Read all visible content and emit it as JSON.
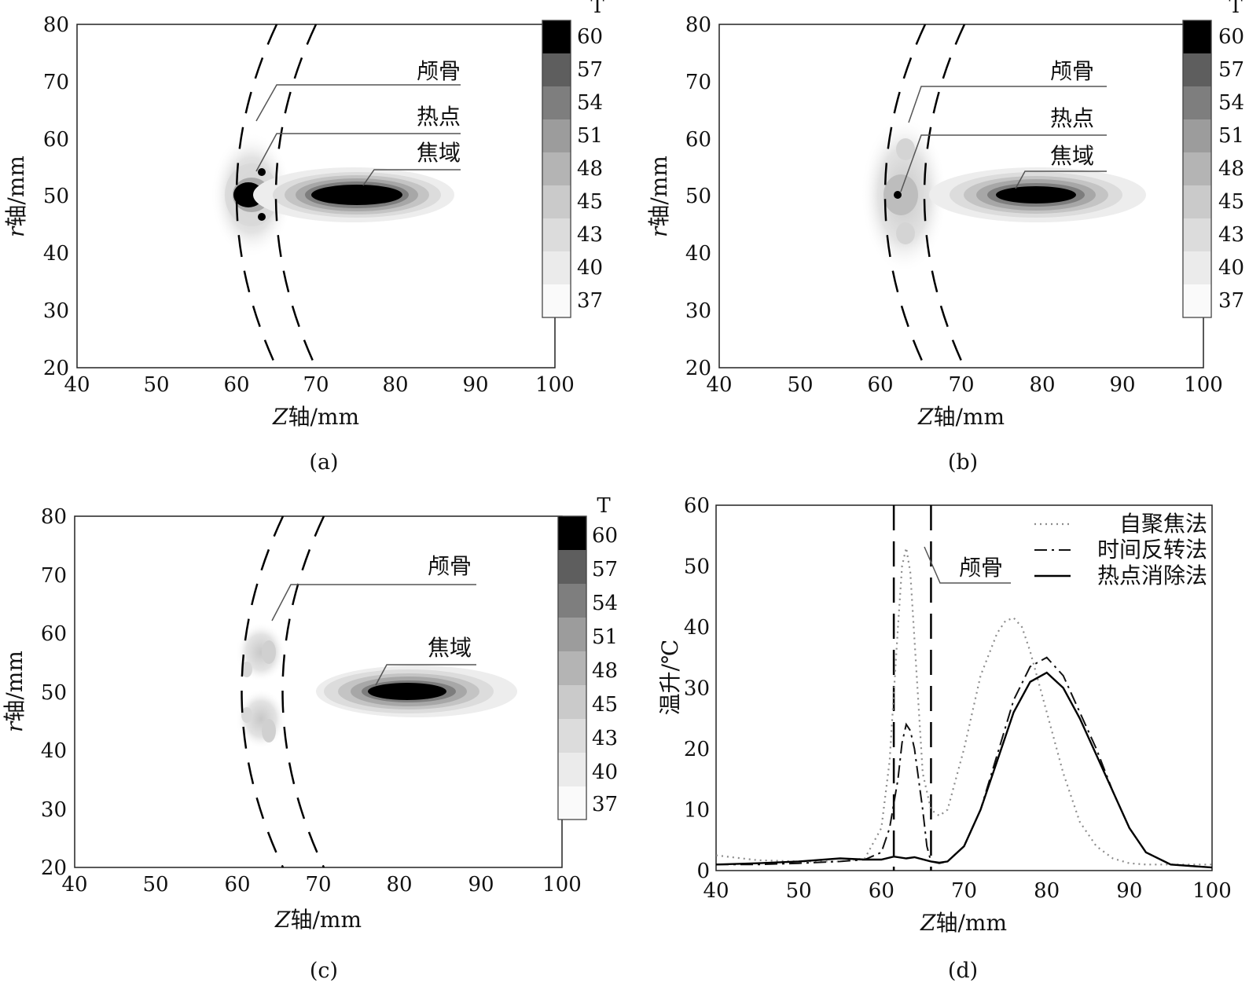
{
  "figure": {
    "panels": [
      {
        "caption": "(a)",
        "xlabel_var": "Z",
        "xlabel_rest": "轴/mm",
        "ylabel_var": "r",
        "ylabel_rest": "轴/mm",
        "colorbar_title": "T",
        "annotations": [
          "颅骨",
          "热点",
          "焦域"
        ]
      },
      {
        "caption": "(b)",
        "xlabel_var": "Z",
        "xlabel_rest": "轴/mm",
        "ylabel_var": "r",
        "ylabel_rest": "轴/mm",
        "colorbar_title": "T",
        "annotations": [
          "颅骨",
          "热点",
          "焦域"
        ]
      },
      {
        "caption": "(c)",
        "xlabel_var": "Z",
        "xlabel_rest": "轴/mm",
        "ylabel_var": "r",
        "ylabel_rest": "轴/mm",
        "colorbar_title": "T",
        "annotations": [
          "颅骨",
          "焦域"
        ]
      },
      {
        "caption": "(d)",
        "xlabel_var": "Z",
        "xlabel_rest": "轴/mm",
        "ylabel": "温升/℃",
        "annotations": [
          "颅骨"
        ]
      }
    ]
  },
  "chart_data": [
    {
      "type": "heatmap",
      "panel": "(a)",
      "x_ticks": [
        40,
        50,
        60,
        70,
        80,
        90,
        100
      ],
      "y_ticks": [
        20,
        30,
        40,
        50,
        60,
        70,
        80
      ],
      "xlim": [
        40,
        100
      ],
      "ylim": [
        20,
        80
      ],
      "colorbar_ticks": [
        60,
        57,
        54,
        51,
        48,
        45,
        43,
        40,
        37
      ],
      "colorscale": "white-to-black (37 → 60)",
      "skull_boundaries": "two dashed arcs, inner near Z≈60, outer near Z≈65 at r=50",
      "hotspots": [
        {
          "z": 61.5,
          "r": 50,
          "level": 60
        },
        {
          "z": 63,
          "r": 54,
          "level": 60
        },
        {
          "z": 63,
          "r": 46.5,
          "level": 60
        }
      ],
      "focal_region": {
        "z": 75,
        "r": 50,
        "level": 60
      },
      "grid": false
    },
    {
      "type": "heatmap",
      "panel": "(b)",
      "x_ticks": [
        40,
        50,
        60,
        70,
        80,
        90,
        100
      ],
      "y_ticks": [
        20,
        30,
        40,
        50,
        60,
        70,
        80
      ],
      "xlim": [
        40,
        100
      ],
      "ylim": [
        20,
        80
      ],
      "colorbar_ticks": [
        60,
        57,
        54,
        51,
        48,
        45,
        43,
        40,
        37
      ],
      "colorscale": "white-to-black (37 → 60)",
      "skull_boundaries": "two dashed arcs, inner near Z≈60, outer near Z≈65 at r=50",
      "hotspots": [
        {
          "z": 62.5,
          "r": 50,
          "level": 60
        }
      ],
      "focal_region": {
        "z": 79,
        "r": 50,
        "level": 60
      },
      "grid": false
    },
    {
      "type": "heatmap",
      "panel": "(c)",
      "x_ticks": [
        40,
        50,
        60,
        70,
        80,
        90,
        100
      ],
      "y_ticks": [
        20,
        30,
        40,
        50,
        60,
        70,
        80
      ],
      "xlim": [
        40,
        100
      ],
      "ylim": [
        20,
        80
      ],
      "colorbar_ticks": [
        60,
        57,
        54,
        51,
        48,
        45,
        43,
        40,
        37
      ],
      "colorscale": "white-to-black (37 → 60)",
      "skull_boundaries": "two dashed arcs, inner near Z≈60, outer near Z≈65 at r=50",
      "hotspots": [],
      "focal_region": {
        "z": 80,
        "r": 50,
        "level": 60
      },
      "grid": false
    },
    {
      "type": "line",
      "panel": "(d)",
      "xlim": [
        40,
        100
      ],
      "ylim": [
        0,
        60
      ],
      "x_ticks": [
        40,
        50,
        60,
        70,
        80,
        90,
        100
      ],
      "y_ticks": [
        0,
        10,
        20,
        30,
        40,
        50,
        60
      ],
      "skull_lines_x": [
        61.5,
        66
      ],
      "legend_position": "top-right",
      "grid": false,
      "series": [
        {
          "name": "自聚焦法",
          "style": "dotted",
          "color": "#8c8c8c",
          "x": [
            40,
            45,
            50,
            55,
            58,
            60,
            61,
            62,
            62.5,
            63,
            63.5,
            64,
            65,
            66,
            67,
            68,
            70,
            72,
            74,
            75,
            76,
            77,
            78,
            80,
            82,
            84,
            86,
            88,
            90,
            92,
            95,
            100
          ],
          "y": [
            2.5,
            1.7,
            1.5,
            1.5,
            2,
            7,
            18,
            40,
            50,
            53,
            49,
            38,
            16,
            10,
            9,
            10,
            20,
            32,
            39,
            41,
            41.5,
            40,
            36,
            26,
            16,
            8,
            4,
            2,
            1.2,
            1,
            1,
            1
          ]
        },
        {
          "name": "时间反转法",
          "style": "dashdot",
          "color": "#111111",
          "x": [
            40,
            45,
            50,
            55,
            58,
            60,
            61,
            62,
            62.5,
            63,
            63.5,
            64,
            65,
            65.5,
            66,
            67,
            68,
            70,
            72,
            74,
            76,
            78,
            80,
            82,
            84,
            86,
            88,
            90,
            92,
            95,
            100
          ],
          "y": [
            1,
            1,
            1.2,
            1.5,
            1.8,
            3,
            7,
            15,
            21,
            24,
            23,
            20,
            10,
            4,
            1.5,
            1.2,
            1.5,
            4,
            10,
            19,
            28,
            33.5,
            35,
            32,
            26,
            20,
            13,
            7,
            3,
            1,
            0.5
          ]
        },
        {
          "name": "热点消除法",
          "style": "solid",
          "color": "#000000",
          "x": [
            40,
            45,
            50,
            55,
            58,
            60,
            61.5,
            63,
            64,
            66,
            67,
            68,
            70,
            72,
            74,
            76,
            78,
            80,
            82,
            84,
            86,
            88,
            90,
            92,
            95,
            100
          ],
          "y": [
            1,
            1.2,
            1.5,
            2,
            1.8,
            1.8,
            2.3,
            2,
            2.2,
            1.5,
            1.3,
            1.5,
            4,
            10,
            18,
            26,
            31,
            32.5,
            30,
            25,
            19,
            13,
            7,
            3,
            1,
            0.5
          ]
        }
      ]
    }
  ]
}
